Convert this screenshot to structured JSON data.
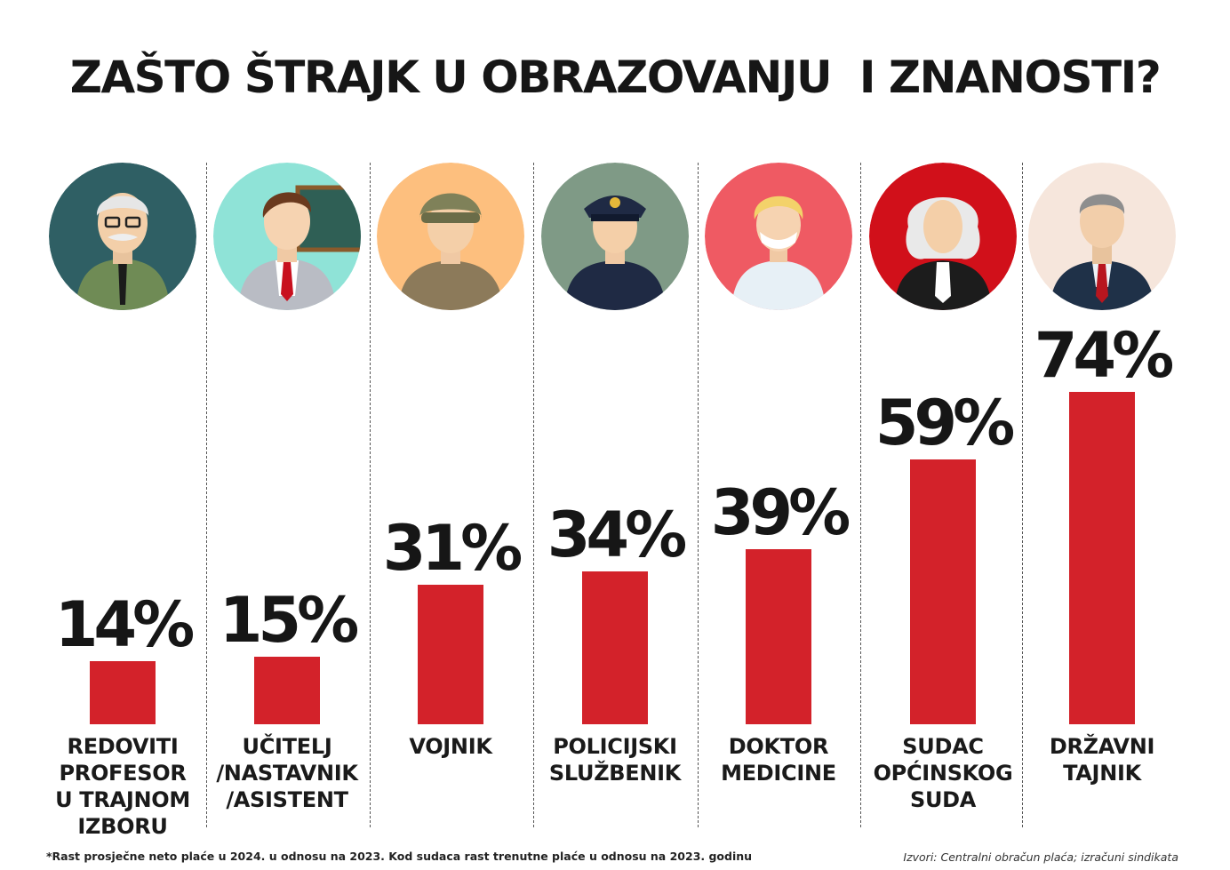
{
  "title": "ZAŠTO ŠTRAJK U OBRAZOVANJU  I ZNANOSTI?",
  "chart_data": {
    "type": "bar",
    "categories": [
      "REDOVITI\nPROFESOR\nU TRAJNOM\nIZBORU",
      "UČITELJ\n/NASTAVNIK\n/ASISTENT",
      "VOJNIK",
      "POLICIJSKI\nSLUŽBENIK",
      "DOKTOR\nMEDICINE",
      "SUDAC\nOPĆINSKOG\nSUDA",
      "DRŽAVNI\nTAJNIK"
    ],
    "values": [
      14,
      15,
      31,
      34,
      39,
      59,
      74
    ],
    "value_labels": [
      "14%",
      "15%",
      "31%",
      "34%",
      "39%",
      "59%",
      "74%"
    ],
    "unit": "%",
    "bar_color": "#d3222a",
    "icons": [
      "professor-icon",
      "teacher-icon",
      "soldier-icon",
      "police-officer-icon",
      "doctor-icon",
      "judge-icon",
      "state-secretary-icon"
    ],
    "icon_backgrounds": [
      "#2f5f64",
      "#8fe3d7",
      "#fdbf7e",
      "#7f9a86",
      "#ef5a63",
      "#d1101a",
      "#f6e6dc"
    ],
    "grid": false,
    "legend": "none"
  },
  "footnote": "*Rast prosječne neto plaće u 2024. u odnosu na 2023. Kod sudaca rast trenutne plaće u odnosu na 2023. godinu",
  "source": "Izvori: Centralni obračun plaća; izračuni sindikata"
}
